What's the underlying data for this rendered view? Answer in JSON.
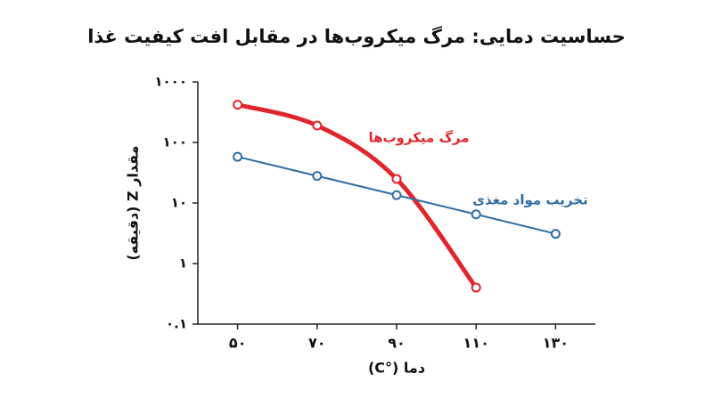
{
  "chart_data": {
    "type": "line",
    "title": "حساسیت دمایی: مرگ میکروب‌ها در مقابل افت کیفیت غذا",
    "x_label": "دما (°C)",
    "y_label": "مقدار Z (دقیقه)",
    "x": [
      50,
      70,
      90,
      110,
      130
    ],
    "xlim": [
      40,
      140
    ],
    "xticks": [
      {
        "value": 50,
        "label": "۵۰"
      },
      {
        "value": 70,
        "label": "۷۰"
      },
      {
        "value": 90,
        "label": "۹۰"
      },
      {
        "value": 110,
        "label": "۱۱۰"
      },
      {
        "value": 130,
        "label": "۱۳۰"
      }
    ],
    "ylim": [
      0.1,
      1000
    ],
    "yticks": [
      {
        "value": 0.1,
        "label": "۰.۱"
      },
      {
        "value": 1,
        "label": "۱"
      },
      {
        "value": 10,
        "label": "۱۰"
      },
      {
        "value": 100,
        "label": "۱۰۰"
      },
      {
        "value": 1000,
        "label": "۱۰۰۰"
      }
    ],
    "y_scale": "log",
    "series": [
      {
        "name": "مرگ میکروب‌ها",
        "color": "#e0262c",
        "values": [
          420,
          190,
          25,
          0.4,
          null
        ]
      },
      {
        "name": "تخریب مواد مغذی",
        "color": "#2e6da4",
        "values": [
          58,
          28,
          13.5,
          6.5,
          3.1
        ]
      }
    ]
  }
}
